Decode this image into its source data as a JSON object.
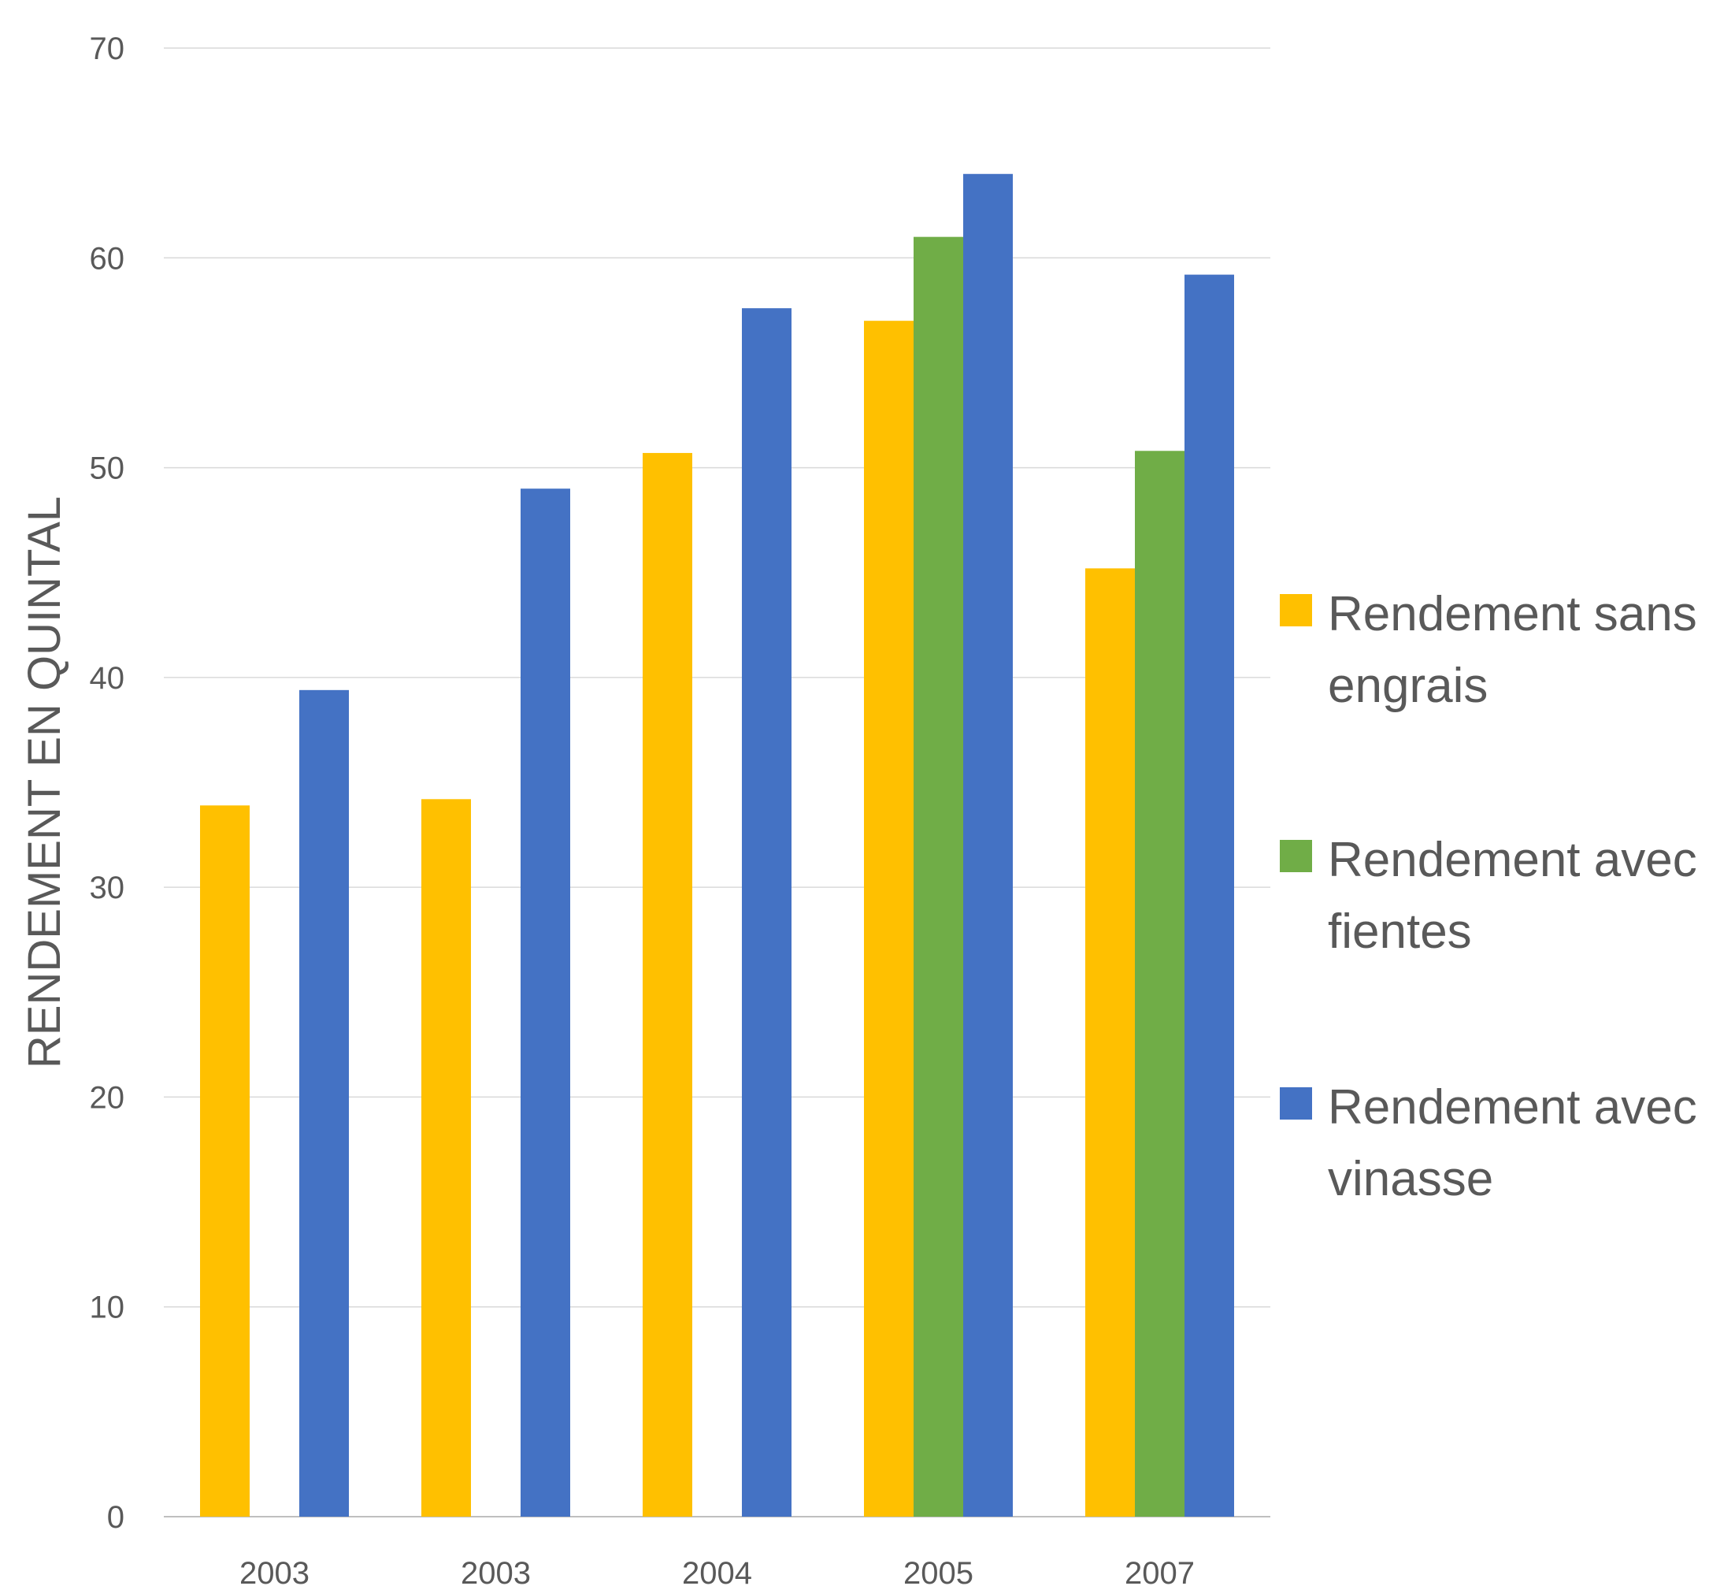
{
  "chart_data": {
    "type": "bar",
    "title": "",
    "xlabel": "",
    "ylabel": "RENDEMENT EN QUINTAL",
    "ylim": [
      0,
      70
    ],
    "yticks": [
      0,
      10,
      20,
      30,
      40,
      50,
      60,
      70
    ],
    "grid": true,
    "legend_position": "right",
    "categories": [
      "2003",
      "2003",
      "2004",
      "2005",
      "2007"
    ],
    "series": [
      {
        "name": "Rendement sans engrais",
        "legend_lines": [
          "Rendement sans",
          "engrais"
        ],
        "color": "#FFC000",
        "values": [
          33.9,
          34.2,
          50.7,
          57.0,
          45.2
        ]
      },
      {
        "name": "Rendement avec fientes",
        "legend_lines": [
          "Rendement avec",
          "fientes"
        ],
        "color": "#70AD47",
        "values": [
          null,
          null,
          null,
          61.0,
          50.8
        ]
      },
      {
        "name": "Rendement avec vinasse",
        "legend_lines": [
          "Rendement avec",
          "vinasse"
        ],
        "color": "#4472C4",
        "values": [
          39.4,
          49.0,
          57.6,
          64.0,
          59.2
        ]
      }
    ]
  }
}
